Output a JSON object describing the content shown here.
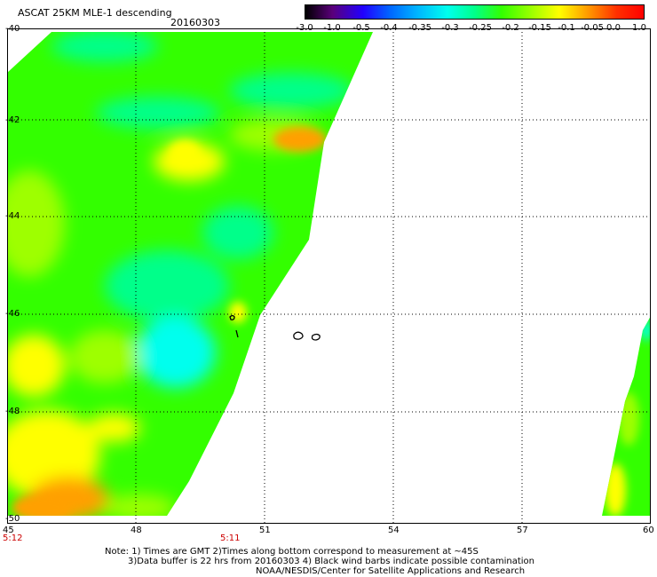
{
  "header": {
    "title": "ASCAT 25KM MLE-1 descending",
    "date": "20160303"
  },
  "colorbar": {
    "labels": [
      "-3.0",
      "-1.0",
      "-0.5",
      "-0.4",
      "-0.35",
      "-0.3",
      "-0.25",
      "-0.2",
      "-0.15",
      "-0.1",
      "-0.05",
      "0.0",
      "1.0"
    ],
    "colors": [
      "#000000",
      "#5a007a",
      "#2200ff",
      "#0066ff",
      "#00b4ff",
      "#00ffee",
      "#00ff8a",
      "#33ff00",
      "#9eff00",
      "#ffff00",
      "#ffa000",
      "#ff3000",
      "#ff0000"
    ]
  },
  "axes": {
    "lat_labels": [
      "-40",
      "-42",
      "-44",
      "-46",
      "-48",
      "-50"
    ],
    "lon_labels": [
      "45",
      "48",
      "51",
      "54",
      "57",
      "60"
    ],
    "lat_range": [
      -50,
      -40
    ],
    "lon_range": [
      45,
      60
    ]
  },
  "swath_times": {
    "left": "5:12",
    "middle": "5:11"
  },
  "notes": {
    "line1": "Note: 1) Times are GMT 2)Times along bottom correspond to measurement at ~45S",
    "line2": "3)Data buffer is 22 hrs from 20160303 4) Black wind barbs indicate possible contamination",
    "line3": "NOAA/NESDIS/Center for Satellite Applications and Research"
  }
}
